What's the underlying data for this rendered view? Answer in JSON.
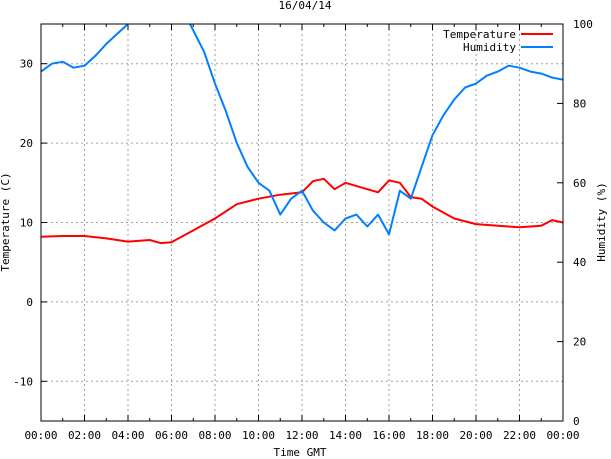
{
  "chart_data": {
    "type": "line",
    "title": "16/04/14",
    "xlabel": "Time GMT",
    "ylabel": "Temperature (C)",
    "y2label": "Humidity (%)",
    "xlim": [
      0,
      24
    ],
    "ylim": [
      -15,
      35
    ],
    "y2lim": [
      0,
      100
    ],
    "grid": true,
    "legend_position": "top-right",
    "x_ticks": [
      0,
      2,
      4,
      6,
      8,
      10,
      12,
      14,
      16,
      18,
      20,
      22,
      24
    ],
    "x_tick_labels": [
      "00:00",
      "02:00",
      "04:00",
      "06:00",
      "08:00",
      "10:00",
      "12:00",
      "14:00",
      "16:00",
      "18:00",
      "20:00",
      "22:00",
      "00:00"
    ],
    "y_ticks": [
      -10,
      0,
      10,
      20,
      30
    ],
    "y_tick_labels": [
      "-10",
      "0",
      "10",
      "20",
      "30"
    ],
    "y2_ticks": [
      0,
      20,
      40,
      60,
      80,
      100
    ],
    "y2_tick_labels": [
      "0",
      "20",
      "40",
      "60",
      "80",
      "100"
    ],
    "series": [
      {
        "name": "Temperature",
        "axis": "left",
        "color": "#ff0000",
        "x": [
          0,
          1,
          2,
          3,
          4,
          5,
          5.5,
          6,
          7,
          8,
          9,
          10,
          11,
          12,
          12.5,
          13,
          13.5,
          14,
          15,
          15.5,
          16,
          16.5,
          17,
          17.5,
          18,
          19,
          20,
          21,
          22,
          23,
          23.5,
          24
        ],
        "y": [
          8.2,
          8.3,
          8.3,
          8.0,
          7.6,
          7.8,
          7.4,
          7.5,
          9.0,
          10.5,
          12.3,
          13.0,
          13.5,
          13.8,
          15.2,
          15.5,
          14.2,
          15.0,
          14.2,
          13.8,
          15.3,
          15.0,
          13.2,
          13.0,
          12.0,
          10.5,
          9.8,
          9.6,
          9.4,
          9.6,
          10.3,
          10.0
        ]
      },
      {
        "name": "Humidity",
        "axis": "right",
        "color": "#0080ff",
        "x": [
          0,
          0.5,
          1,
          1.5,
          2,
          2.5,
          3,
          3.5,
          4,
          4.5,
          5,
          5.5,
          6,
          6.5,
          6.85,
          7.5,
          8,
          8.5,
          9,
          9.5,
          10,
          10.5,
          11,
          11.5,
          12,
          12.5,
          13,
          13.5,
          14,
          14.5,
          15,
          15.5,
          16,
          16.5,
          17,
          17.5,
          18,
          18.5,
          19,
          19.5,
          20,
          20.5,
          21,
          21.5,
          22,
          22.5,
          23,
          23.5,
          24
        ],
        "y": [
          88,
          90,
          90.5,
          89,
          89.5,
          92,
          95,
          97.5,
          100,
          103,
          105,
          105,
          104,
          103,
          100,
          93,
          85,
          78,
          70,
          64,
          60,
          58,
          52,
          56,
          58,
          53,
          50,
          48,
          51,
          52,
          49,
          52,
          47,
          58,
          56,
          64,
          72,
          77,
          81,
          84,
          85,
          87,
          88,
          89.5,
          89,
          88,
          87.5,
          86.5,
          86
        ]
      }
    ]
  }
}
